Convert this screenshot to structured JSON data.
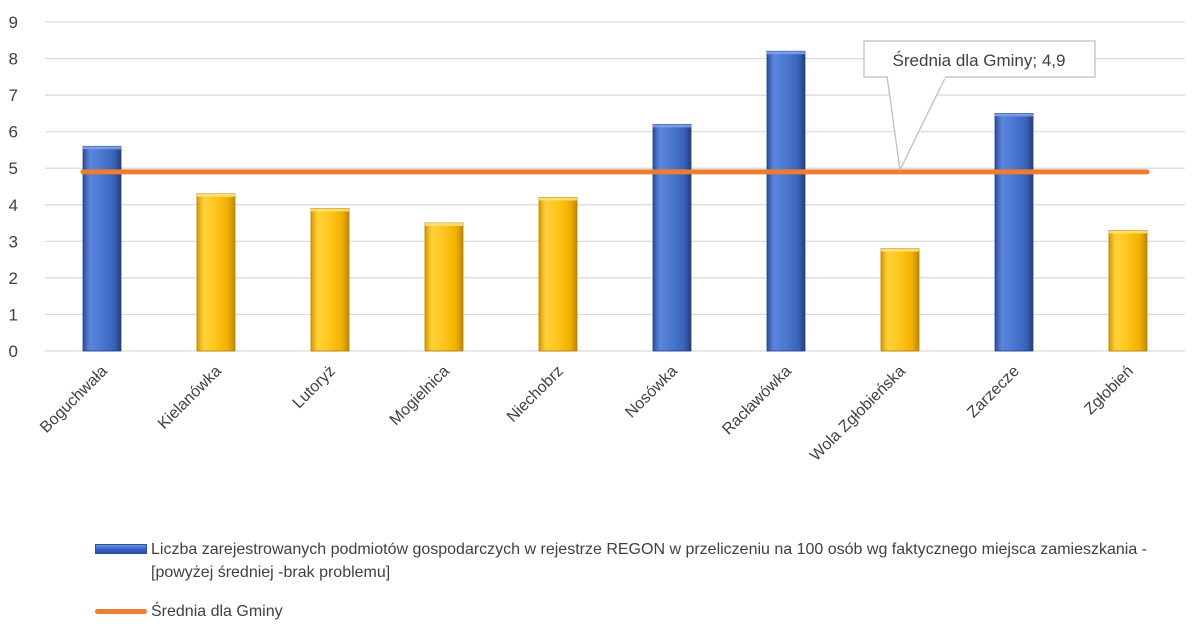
{
  "chart_data": {
    "type": "bar",
    "categories": [
      "Boguchwała",
      "Kielanówka",
      "Lutoryż",
      "Mogielnica",
      "Niechobrz",
      "Nosówka",
      "Racławówka",
      "Wola Zgłobieńska",
      "Zarzecze",
      "Zgłobień"
    ],
    "series": [
      {
        "name": "Liczba zarejestrowanych podmiotów gospodarczych w rejestrze REGON w przeliczeniu na 100 osób wg faktycznego miejsca zamieszkania -[powyżej średniej -brak problemu]",
        "values": [
          5.6,
          4.3,
          3.9,
          3.5,
          4.2,
          6.2,
          8.2,
          2.8,
          6.5,
          3.3
        ]
      },
      {
        "name": "Średnia dla Gminy",
        "type": "line",
        "values": [
          4.9,
          4.9,
          4.9,
          4.9,
          4.9,
          4.9,
          4.9,
          4.9,
          4.9,
          4.9
        ]
      }
    ],
    "ylim": [
      0,
      9
    ],
    "yticks": [
      0,
      1,
      2,
      3,
      4,
      5,
      6,
      7,
      8,
      9
    ],
    "grid": true,
    "legend_position": "bottom",
    "annotation": "Średnia dla Gminy; 4,9",
    "colors": {
      "above": "#4472c4",
      "below": "#ffc000",
      "average": "#ed7d31"
    }
  }
}
